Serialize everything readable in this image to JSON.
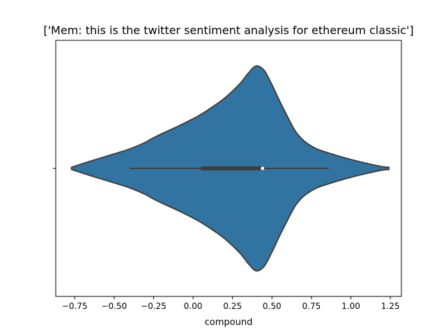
{
  "chart_data": {
    "type": "violin",
    "title": "['Mem: this is the twitter sentiment analysis for ethereum classic']",
    "xlabel": "compound",
    "ylabel": "",
    "xlim": [
      -0.87,
      1.32
    ],
    "xticks": [
      -0.75,
      -0.5,
      -0.25,
      0.0,
      0.25,
      0.5,
      0.75,
      1.0,
      1.25
    ],
    "xtick_labels": [
      "−0.75",
      "−0.50",
      "−0.25",
      "0.00",
      "0.25",
      "0.50",
      "0.75",
      "1.00",
      "1.25"
    ],
    "grid": false,
    "fill_color": "#3274a1",
    "edge_color": "#3f3f3f",
    "density": {
      "x": [
        -0.77,
        -0.65,
        -0.5,
        -0.4,
        -0.3,
        -0.27,
        -0.2,
        -0.1,
        0.0,
        0.05,
        0.1,
        0.2,
        0.3,
        0.35,
        0.4,
        0.45,
        0.5,
        0.55,
        0.6,
        0.65,
        0.7,
        0.75,
        0.8,
        0.9,
        1.0,
        1.1,
        1.2,
        1.24
      ],
      "width": [
        0.02,
        0.13,
        0.26,
        0.35,
        0.47,
        0.52,
        0.62,
        0.75,
        0.89,
        0.97,
        1.06,
        1.26,
        1.53,
        1.71,
        1.84,
        1.76,
        1.5,
        1.2,
        0.92,
        0.66,
        0.5,
        0.4,
        0.33,
        0.24,
        0.16,
        0.09,
        0.03,
        0.02
      ]
    },
    "box": {
      "whisker_low": -0.4,
      "q1": 0.05,
      "median": 0.44,
      "q3": 0.44,
      "whisker_high": 0.86
    }
  }
}
